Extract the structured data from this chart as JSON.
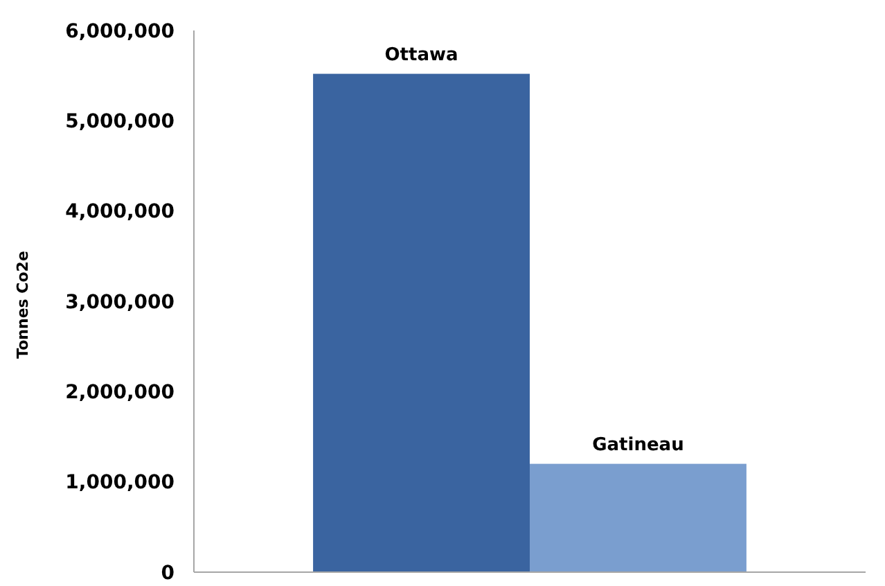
{
  "chart_data": {
    "type": "bar",
    "ylabel": "Tonnes Co2e",
    "categories": [
      null
    ],
    "series": [
      {
        "name": "Ottawa",
        "color": "#3a64a0",
        "values": [
          5520000
        ]
      },
      {
        "name": "Gatineau",
        "color": "#7a9ecf",
        "values": [
          1200000
        ]
      }
    ],
    "ylim": [
      0,
      6000000
    ],
    "yticks": [
      {
        "value": 0,
        "label": "0"
      },
      {
        "value": 1000000,
        "label": "1,000,000"
      },
      {
        "value": 2000000,
        "label": "2,000,000"
      },
      {
        "value": 3000000,
        "label": "3,000,000"
      },
      {
        "value": 4000000,
        "label": "4,000,000"
      },
      {
        "value": 5000000,
        "label": "5,000,000"
      },
      {
        "value": 6000000,
        "label": "6,000,000"
      }
    ],
    "grid": false,
    "legend": false
  }
}
